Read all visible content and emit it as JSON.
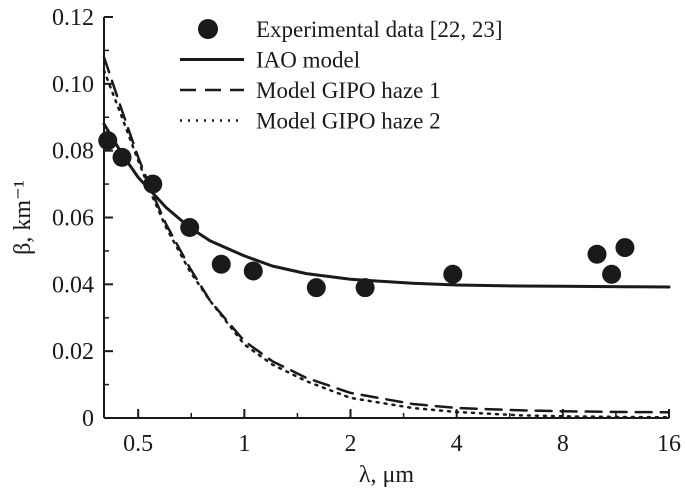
{
  "chart_data": {
    "type": "scatter",
    "xlabel": "λ, μm",
    "ylabel": "β, km⁻¹",
    "x_scale": "log2",
    "xlim": [
      0.4,
      16
    ],
    "ylim": [
      0,
      0.12
    ],
    "x_ticks": [
      0.5,
      1,
      2,
      4,
      8,
      16
    ],
    "x_tick_labels": [
      "0.5",
      "1",
      "2",
      "4",
      "8",
      "16"
    ],
    "y_ticks": [
      0,
      0.02,
      0.04,
      0.06,
      0.08,
      0.1,
      0.12
    ],
    "y_tick_labels": [
      "0",
      "0.02",
      "0.04",
      "0.06",
      "0.08",
      "0.10",
      "0.12"
    ],
    "grid": false,
    "legend_position": "top-right",
    "series": [
      {
        "name": "Experimental data [22, 23]",
        "style": "marker",
        "color": "#1a1a1a",
        "x": [
          0.41,
          0.45,
          0.55,
          0.7,
          0.86,
          1.06,
          1.6,
          2.2,
          3.9,
          10.0,
          11.0,
          12.0
        ],
        "y": [
          0.083,
          0.078,
          0.07,
          0.057,
          0.046,
          0.044,
          0.039,
          0.039,
          0.043,
          0.049,
          0.043,
          0.051
        ]
      },
      {
        "name": "IAO model",
        "style": "solid",
        "color": "#1a1a1a",
        "x": [
          0.4,
          0.45,
          0.5,
          0.6,
          0.7,
          0.8,
          1.0,
          1.2,
          1.5,
          2.0,
          3.0,
          4.0,
          6.0,
          8.0,
          12.0,
          16.0
        ],
        "y": [
          0.088,
          0.079,
          0.072,
          0.063,
          0.057,
          0.053,
          0.0485,
          0.0455,
          0.0432,
          0.0415,
          0.0403,
          0.0398,
          0.0395,
          0.0394,
          0.0393,
          0.0392
        ]
      },
      {
        "name": "Model GIPO haze 1",
        "style": "dashed",
        "color": "#1a1a1a",
        "x": [
          0.4,
          0.45,
          0.5,
          0.55,
          0.6,
          0.7,
          0.8,
          1.0,
          1.2,
          1.5,
          2.0,
          3.0,
          4.0,
          6.0,
          8.0,
          12.0,
          16.0
        ],
        "y": [
          0.108,
          0.092,
          0.078,
          0.067,
          0.058,
          0.045,
          0.035,
          0.023,
          0.017,
          0.012,
          0.0075,
          0.0042,
          0.003,
          0.0023,
          0.002,
          0.0018,
          0.0017
        ]
      },
      {
        "name": "Model GIPO haze 2",
        "style": "dotted",
        "color": "#1a1a1a",
        "x": [
          0.4,
          0.45,
          0.5,
          0.55,
          0.6,
          0.7,
          0.8,
          1.0,
          1.2,
          1.5,
          2.0,
          3.0,
          4.0,
          6.0,
          8.0,
          12.0,
          16.0
        ],
        "y": [
          0.104,
          0.09,
          0.077,
          0.066,
          0.057,
          0.044,
          0.035,
          0.022,
          0.016,
          0.011,
          0.006,
          0.003,
          0.0018,
          0.0008,
          0.0005,
          0.0003,
          0.0002
        ]
      }
    ]
  }
}
